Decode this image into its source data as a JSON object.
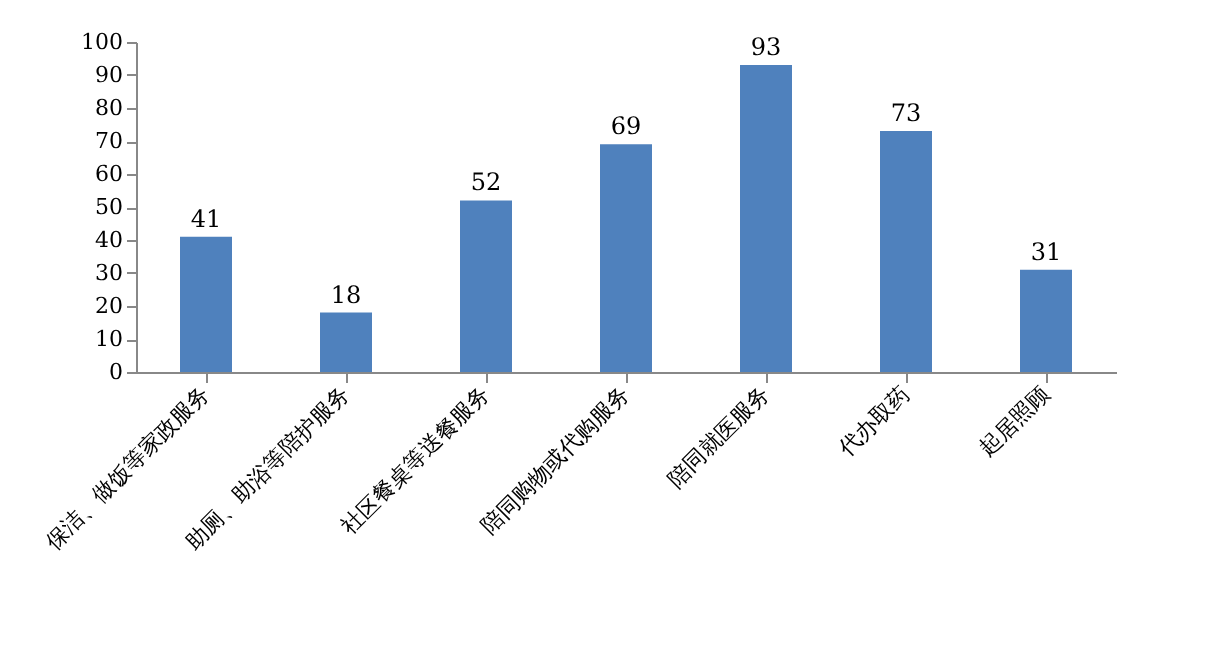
{
  "chart_data": {
    "type": "bar",
    "categories": [
      "保洁、做饭等家政服务",
      "助厕、助浴等陪护服务",
      "社区餐桌等送餐服务",
      "陪同购物或代购服务",
      "陪同就医服务",
      "代办取药",
      "起居照顾"
    ],
    "values": [
      41,
      18,
      52,
      69,
      93,
      73,
      31
    ],
    "color": "#4f81bd",
    "ylim": [
      0,
      100
    ],
    "yticks": [
      0,
      10,
      20,
      30,
      40,
      50,
      60,
      70,
      80,
      90,
      100
    ],
    "grid": false,
    "data_labels": true
  }
}
